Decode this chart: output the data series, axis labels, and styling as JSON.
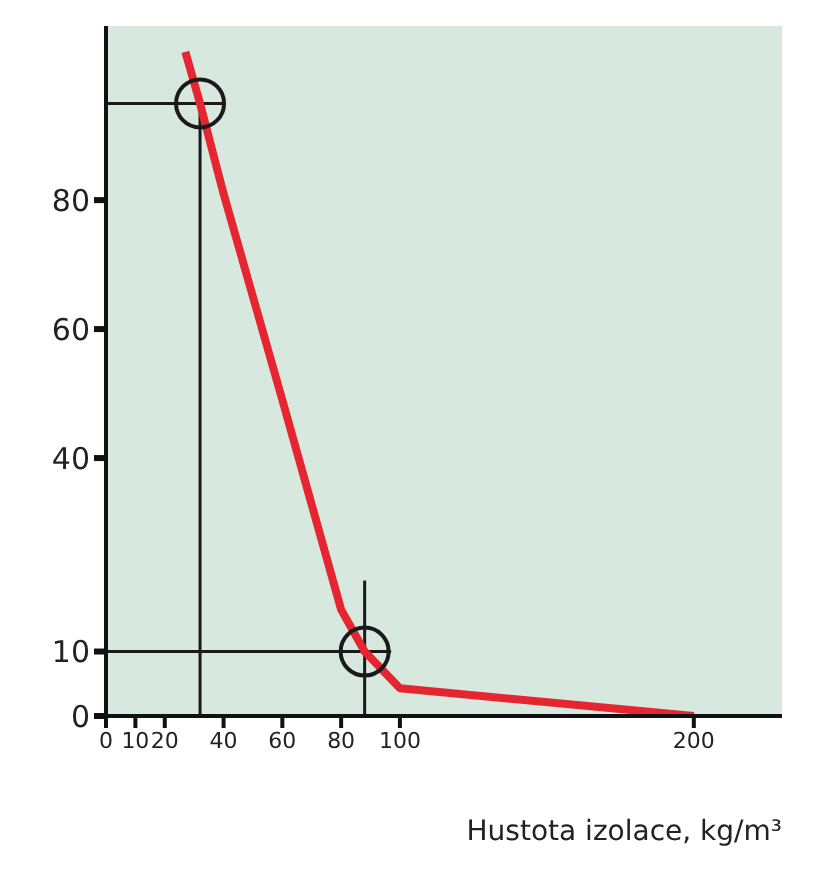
{
  "chart_data": {
    "type": "line",
    "xlabel": "Hustota izolace, kg/m³",
    "xlim": [
      0,
      230
    ],
    "xticks": [
      0,
      10,
      20,
      40,
      60,
      80,
      100,
      200
    ],
    "ylim": [
      0,
      107
    ],
    "yticks": [
      0,
      10,
      40,
      60,
      80
    ],
    "grid": false,
    "legend": false,
    "marker": "none",
    "series": [
      {
        "type": "line",
        "color": "#1a1a1a",
        "x": [
          0,
          40
        ],
        "values": [
          95,
          95
        ]
      },
      {
        "type": "line",
        "color": "#1a1a1a",
        "x": [
          32,
          32
        ],
        "values": [
          0,
          95
        ]
      },
      {
        "type": "line",
        "color": "#1a1a1a",
        "x": [
          0,
          97
        ],
        "values": [
          10,
          10
        ]
      },
      {
        "type": "line",
        "color": "#1a1a1a",
        "x": [
          88,
          88
        ],
        "values": [
          0,
          21
        ]
      },
      {
        "color": "#e52630",
        "x": [
          27,
          32,
          40,
          60,
          80,
          88,
          100,
          200
        ],
        "values": [
          103,
          95,
          81,
          49,
          16.5,
          10,
          4.3,
          0
        ]
      },
      {
        "type": "scatter",
        "color": "#1a1a1a",
        "marker": "circle",
        "x": [
          32,
          88
        ],
        "values": [
          95,
          10
        ]
      }
    ]
  }
}
